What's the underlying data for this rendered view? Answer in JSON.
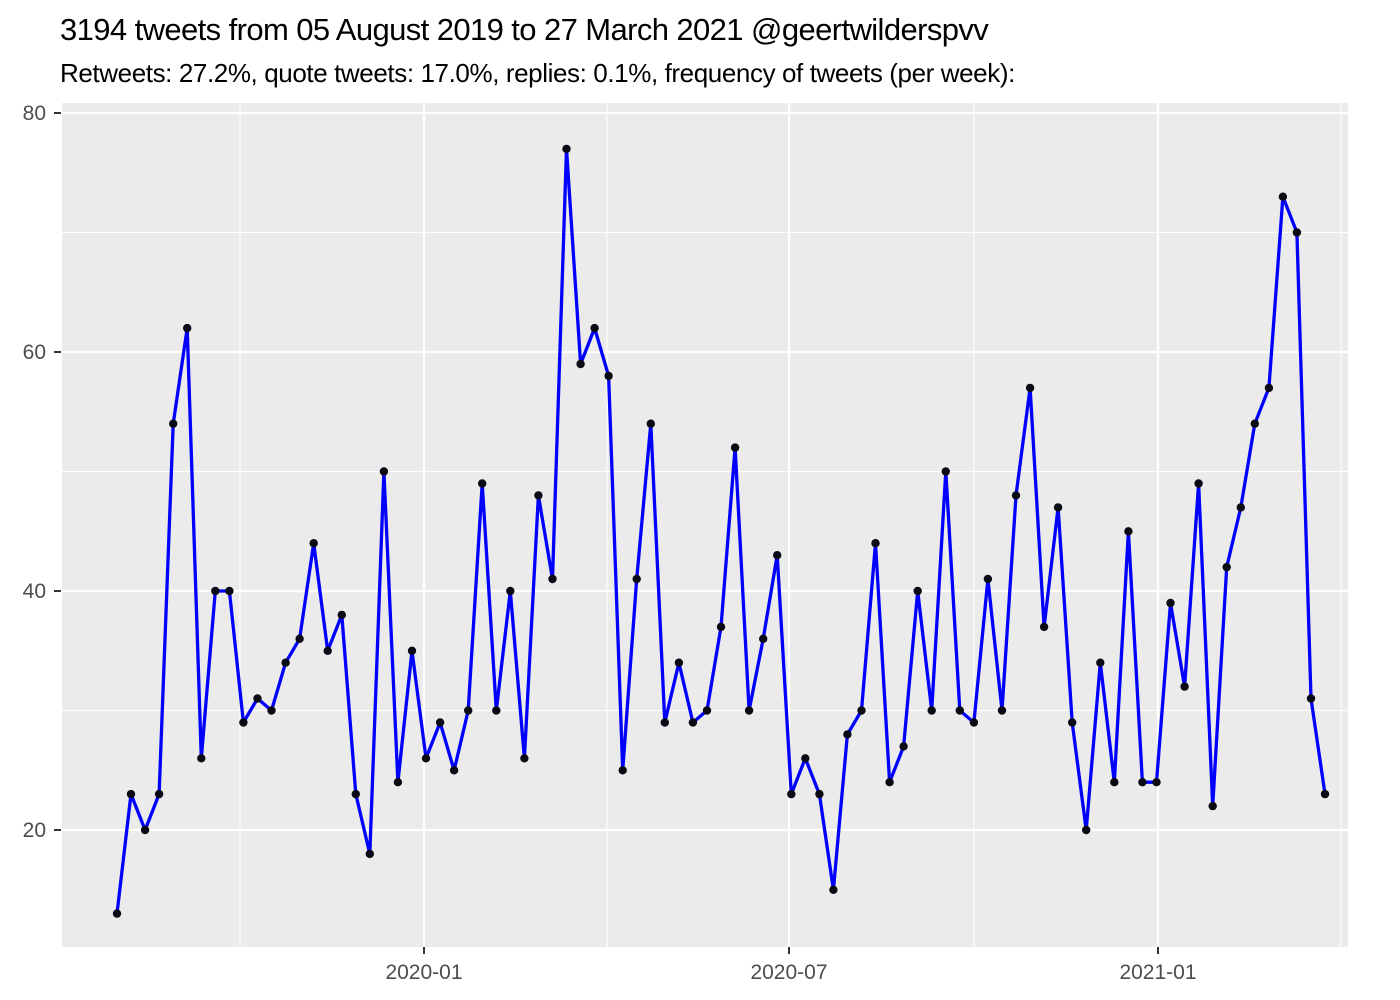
{
  "header": {
    "title": "3194 tweets from 05 August 2019 to 27 March 2021 @geertwilderspvv",
    "subtitle": "Retweets: 27.2%, quote tweets: 17.0%, replies: 0.1%, frequency of tweets (per week):"
  },
  "chart_data": {
    "type": "line",
    "title": "3194 tweets from 05 August 2019 to 27 March 2021 @geertwilderspvv",
    "subtitle": "Retweets: 27.2%, quote tweets: 17.0%, replies: 0.1%, frequency of tweets (per week):",
    "cadence": "weekly",
    "x_span_shown": [
      "early August 2019",
      "late March 2021"
    ],
    "xlabel": "",
    "ylabel": "",
    "x_axis": {
      "tick_labels": [
        "2020-01",
        "2020-07",
        "2021-01"
      ]
    },
    "y_axis": {
      "tick_labels": [
        "20",
        "40",
        "60",
        "80"
      ],
      "minor_gridlines": [
        30,
        50,
        70
      ],
      "range_shown": [
        10.5,
        81
      ]
    },
    "legend": "none",
    "grid": "on",
    "values": [
      13,
      23,
      20,
      23,
      54,
      62,
      26,
      40,
      40,
      29,
      31,
      30,
      34,
      36,
      44,
      35,
      38,
      23,
      18,
      50,
      24,
      35,
      26,
      29,
      25,
      30,
      49,
      30,
      40,
      26,
      48,
      41,
      77,
      59,
      62,
      58,
      25,
      41,
      54,
      29,
      34,
      29,
      30,
      37,
      52,
      30,
      36,
      43,
      23,
      26,
      23,
      15,
      28,
      30,
      44,
      24,
      27,
      40,
      30,
      50,
      30,
      29,
      41,
      30,
      48,
      57,
      37,
      47,
      29,
      20,
      34,
      24,
      45,
      24,
      24,
      39,
      32,
      49,
      22,
      42,
      47,
      54,
      57,
      73,
      70,
      31,
      23
    ],
    "style": {
      "line_color": "#0000FF",
      "point_color": "#0a0a14",
      "panel_bg": "#EBEBEB",
      "grid_color": "#FFFFFF",
      "axis_text_color": "#4D4D4D",
      "tick_mark_color": "#333333",
      "title_color": "#000000",
      "page_bg": "#FFFFFF"
    }
  }
}
